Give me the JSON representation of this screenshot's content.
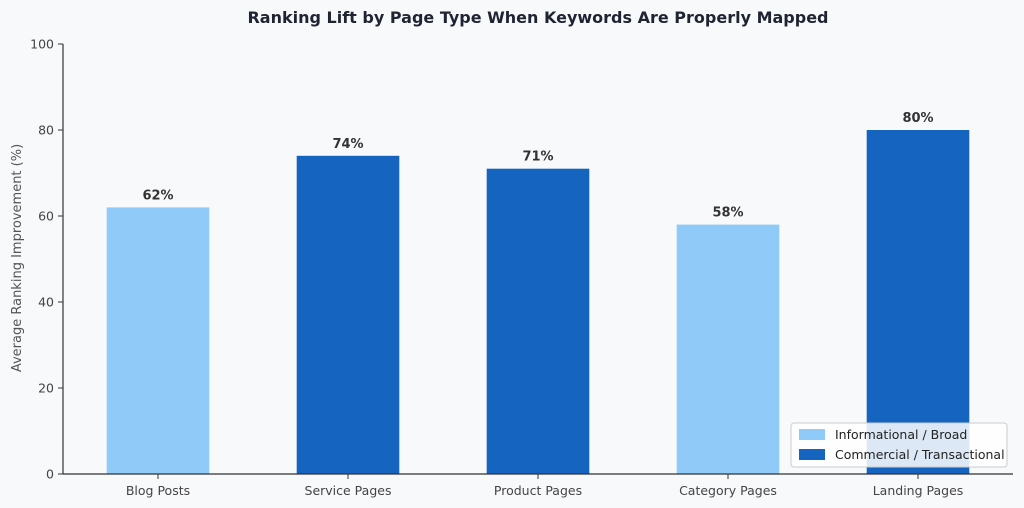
{
  "chart_data": {
    "type": "bar",
    "title": "Ranking Lift by Page Type When Keywords Are Properly Mapped",
    "xlabel": "",
    "ylabel": "Average Ranking Improvement (%)",
    "ylim": [
      0,
      100
    ],
    "yticks": [
      0,
      20,
      40,
      60,
      80,
      100
    ],
    "categories": [
      "Blog Posts",
      "Service Pages",
      "Product Pages",
      "Category Pages",
      "Landing Pages"
    ],
    "values": [
      62,
      74,
      71,
      58,
      80
    ],
    "data_labels": [
      "62%",
      "74%",
      "71%",
      "58%",
      "80%"
    ],
    "groups": [
      "informational",
      "commercial",
      "commercial",
      "informational",
      "commercial"
    ],
    "grid": false,
    "legend": {
      "placement": "bottom-right",
      "entries": [
        {
          "key": "informational",
          "label": "Informational / Broad",
          "color": "#90caf9"
        },
        {
          "key": "commercial",
          "label": "Commercial / Transactional",
          "color": "#1565c0"
        }
      ]
    }
  }
}
